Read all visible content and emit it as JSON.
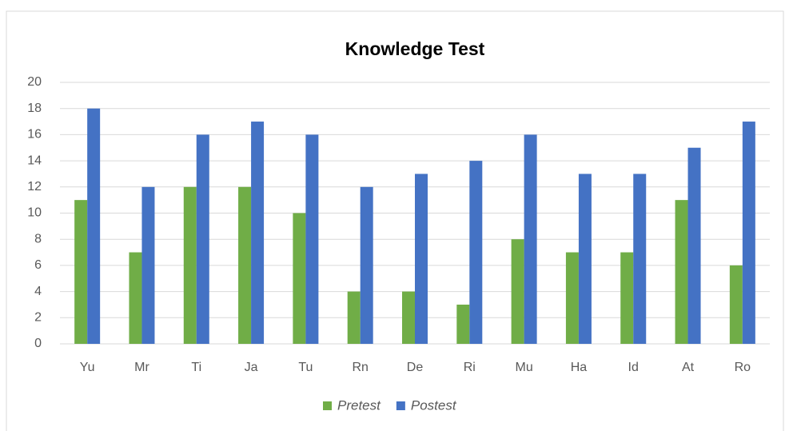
{
  "chart_data": {
    "type": "bar",
    "title": "Knowledge Test",
    "categories": [
      "Yu",
      "Mr",
      "Ti",
      "Ja",
      "Tu",
      "Rn",
      "De",
      "Ri",
      "Mu",
      "Ha",
      "Id",
      "At",
      "Ro"
    ],
    "series": [
      {
        "name": "Pretest",
        "color": "#70ad47",
        "values": [
          11,
          7,
          12,
          12,
          10,
          4,
          4,
          3,
          8,
          7,
          7,
          11,
          6
        ]
      },
      {
        "name": "Postest",
        "color": "#4472c4",
        "values": [
          18,
          12,
          16,
          17,
          16,
          12,
          13,
          14,
          16,
          13,
          13,
          15,
          17
        ]
      }
    ],
    "ylim": [
      0,
      20
    ],
    "yticks": [
      0,
      2,
      4,
      6,
      8,
      10,
      12,
      14,
      16,
      18,
      20
    ],
    "grid": true,
    "legend": "bottom"
  }
}
